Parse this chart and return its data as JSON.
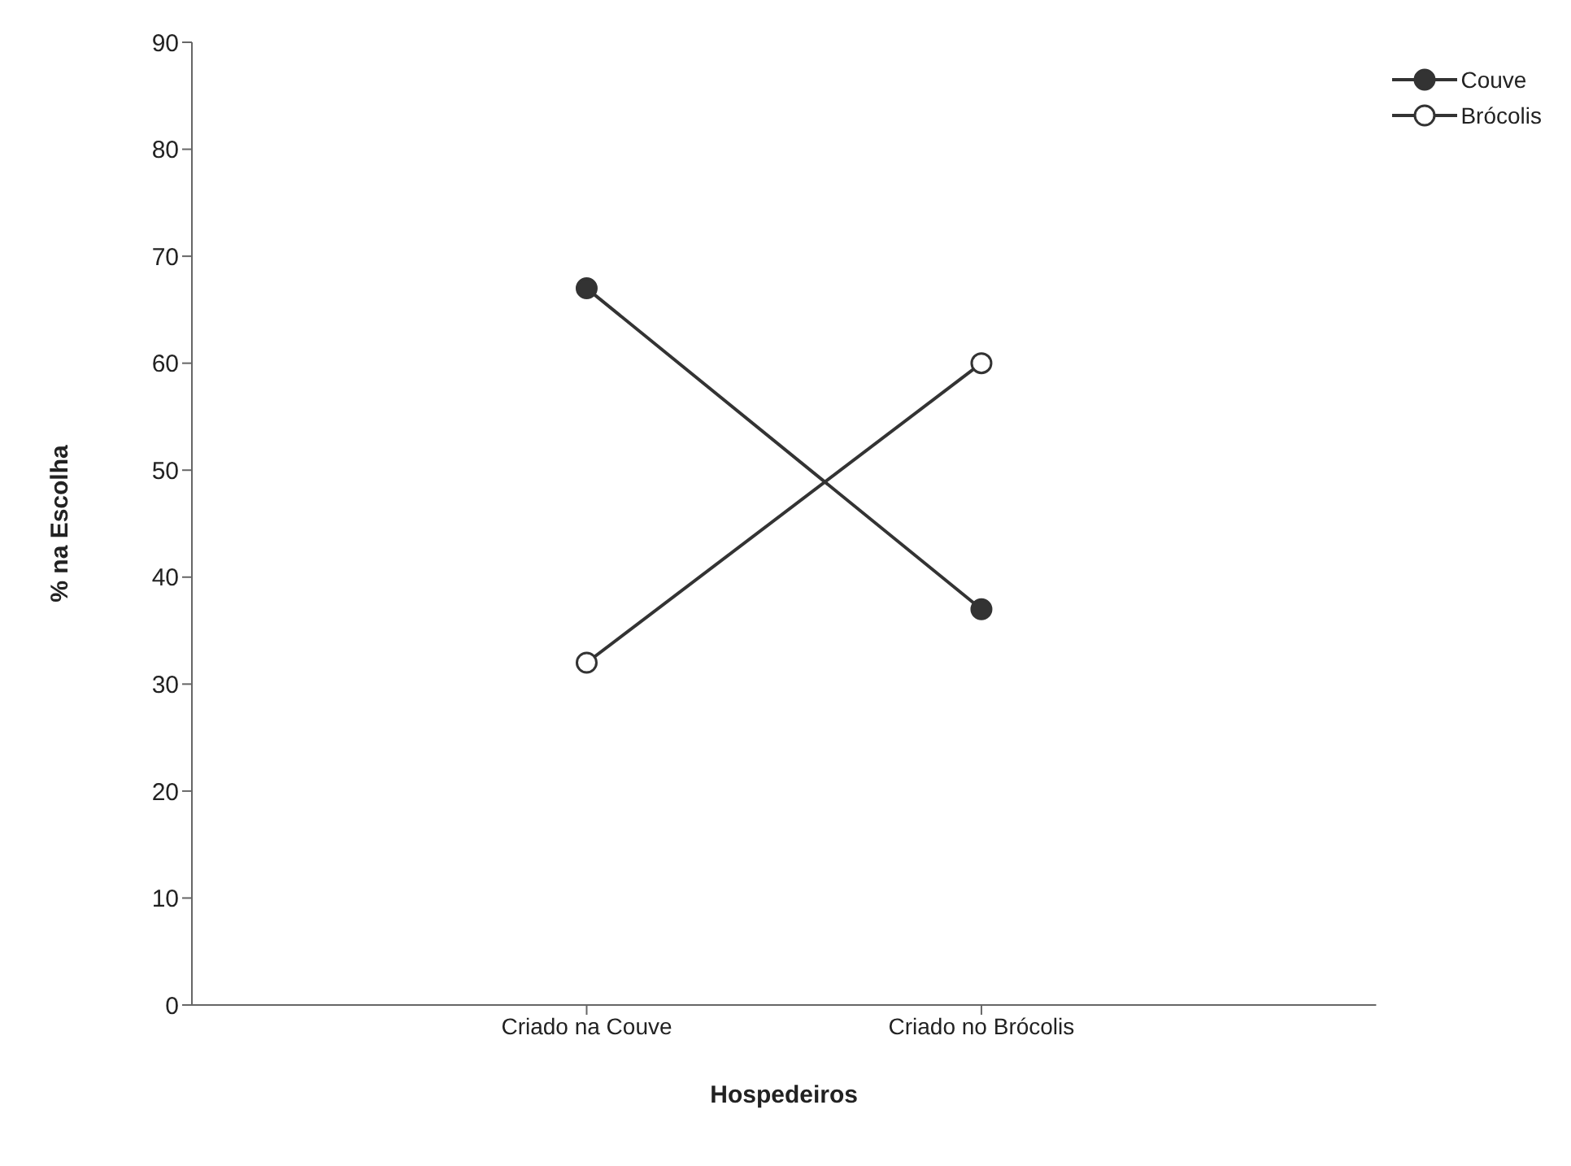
{
  "chart_data": {
    "type": "line",
    "xlabel": "Hospedeiros",
    "ylabel": "% na Escolha",
    "categories": [
      "Criado na Couve",
      "Criado no Brócolis"
    ],
    "series": [
      {
        "name": "Couve",
        "color": "#333333",
        "values": [
          67,
          37
        ]
      },
      {
        "name": "Brócolis",
        "color": "#333333",
        "values": [
          32,
          60
        ]
      }
    ],
    "ylim": [
      0,
      90
    ],
    "yticks": [
      0,
      10,
      20,
      30,
      40,
      50,
      60,
      70,
      80,
      90
    ],
    "grid": false,
    "legend": "top right",
    "marker": "circle",
    "line_style": "solid"
  }
}
